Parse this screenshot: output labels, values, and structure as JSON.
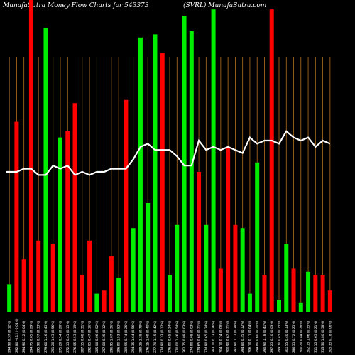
{
  "header": {
    "left": "MunafaSutra  Money Flow  Charts for 543373",
    "right": "(SVRL) MunafaSutra.com"
  },
  "chart_data": {
    "type": "bar",
    "ylim": [
      0,
      100
    ],
    "grid": "vertical",
    "colors": {
      "up": "#00ee00",
      "down": "#ff0000",
      "line": "#ffffff",
      "grid": "#b5701f",
      "background": "#000000"
    },
    "categories": [
      "294.90  0.37 (0.12%)",
      "292.80  -0.12 (-0.04%)",
      "294.90  0.12 (0.04%)",
      "294.75  0.85 (0.29%)",
      "295.90  0.97 (0.33%)",
      "279.60  1.26 (0.45%)",
      "291.20  1.63 (0.56%)",
      "275.20  0.54 (0.20%)",
      "272.15  0.41 (0.15%)",
      "276.05  0.53 (0.19%)",
      "287.15  0.88 (0.31%)",
      "292.85  0.47 (0.16%)",
      "285.00  0.06 (0.02%)",
      "297.00  0.35 (0.12%)",
      "296.95  1.07 (0.36%)",
      "296.90  1.53 (0.52%)",
      "289.95  0.74 (0.26%)",
      "294.35  1.64 (0.56%)",
      "289.25  2.28 (0.79%)",
      "276.15  1.09 (0.40%)",
      "277.70  1.15 (0.42%)",
      "274.90  0.33 (0.12%)",
      "276.90  0.65 (0.24%)",
      "270.00  1.46 (0.54%)",
      "262.75  0.08 (0.03%)",
      "274.90  0.08 (0.03%)",
      "279.65  0.60 (0.21%)",
      "274.90  0.65 (0.24%)",
      "283.10  0.73 (0.26%)",
      "304.10  0.24 (0.08%)",
      "300.90  0.62 (0.21%)",
      "291.90  1.12 (0.38%)",
      "294.80  0.35 (0.12%)",
      "306.10  0.11 (0.04%)",
      "294.80  0.60 (0.20%)",
      "290.90  1.18 (0.41%)",
      "297.25  0.10 (0.03%)",
      "299.30  0.45 (0.15%)",
      "301.55  0.40 (0.13%)",
      "286.55  0.72 (0.25%)",
      "300.20  0.84 (0.28%)",
      "302.15  1.06 (0.35%)",
      "311.15  0.65 (0.21%)",
      "313.30  1.80 (0.58%)",
      "305.35  0.18 (0.06%)"
    ],
    "colors_seq": [
      "up",
      "down",
      "down",
      "down",
      "down",
      "up",
      "down",
      "up",
      "down",
      "down",
      "down",
      "down",
      "up",
      "down",
      "down",
      "up",
      "down",
      "up",
      "up",
      "up",
      "up",
      "down",
      "up",
      "up",
      "up",
      "up",
      "down",
      "up",
      "up",
      "down",
      "down",
      "down",
      "up",
      "up",
      "up",
      "down",
      "down",
      "up",
      "up",
      "down",
      "up",
      "up",
      "down",
      "down",
      "down"
    ],
    "values": [
      9,
      61,
      17,
      100,
      23,
      91,
      22,
      56,
      58,
      67,
      12,
      23,
      6,
      7,
      18,
      11,
      68,
      27,
      88,
      35,
      89,
      83,
      12,
      28,
      95,
      90,
      45,
      28,
      97,
      14,
      53,
      28,
      27,
      6,
      48,
      12,
      97,
      4,
      22,
      14,
      3,
      13,
      12,
      12,
      7
    ],
    "line": [
      45,
      45,
      46,
      46,
      44,
      44,
      47,
      46,
      47,
      44,
      45,
      44,
      45,
      45,
      46,
      46,
      46,
      49,
      53,
      54,
      52,
      52,
      52,
      50,
      47,
      47,
      55,
      52,
      53,
      52,
      53,
      52,
      51,
      56,
      54,
      55,
      55,
      54,
      58,
      56,
      55,
      56,
      53,
      55,
      54
    ]
  }
}
